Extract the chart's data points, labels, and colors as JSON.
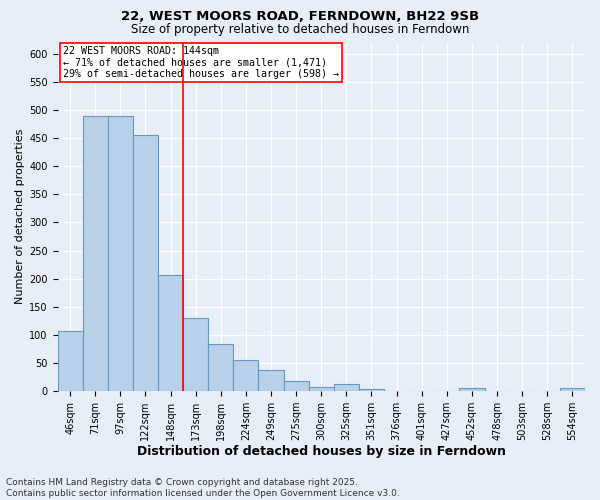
{
  "title_line1": "22, WEST MOORS ROAD, FERNDOWN, BH22 9SB",
  "title_line2": "Size of property relative to detached houses in Ferndown",
  "xlabel": "Distribution of detached houses by size in Ferndown",
  "ylabel": "Number of detached properties",
  "categories": [
    "46sqm",
    "71sqm",
    "97sqm",
    "122sqm",
    "148sqm",
    "173sqm",
    "198sqm",
    "224sqm",
    "249sqm",
    "275sqm",
    "300sqm",
    "325sqm",
    "351sqm",
    "376sqm",
    "401sqm",
    "427sqm",
    "452sqm",
    "478sqm",
    "503sqm",
    "528sqm",
    "554sqm"
  ],
  "values": [
    107,
    490,
    490,
    455,
    207,
    130,
    83,
    55,
    37,
    18,
    8,
    12,
    3,
    1,
    1,
    1,
    5,
    1,
    1,
    1,
    6
  ],
  "bar_color": "#b8d0e8",
  "bar_edge_color": "#6699bb",
  "bar_linewidth": 0.8,
  "vline_x": 4.5,
  "vline_color": "red",
  "vline_linewidth": 1.2,
  "annotation_text": "22 WEST MOORS ROAD: 144sqm\n← 71% of detached houses are smaller (1,471)\n29% of semi-detached houses are larger (598) →",
  "annotation_box_color": "white",
  "annotation_box_edge": "red",
  "annotation_fontsize": 7.2,
  "footer_line1": "Contains HM Land Registry data © Crown copyright and database right 2025.",
  "footer_line2": "Contains public sector information licensed under the Open Government Licence v3.0.",
  "background_color": "#e8eef8",
  "ylim": [
    0,
    620
  ],
  "yticks": [
    0,
    50,
    100,
    150,
    200,
    250,
    300,
    350,
    400,
    450,
    500,
    550,
    600
  ],
  "title_fontsize": 9.5,
  "subtitle_fontsize": 8.5,
  "xlabel_fontsize": 9,
  "ylabel_fontsize": 8,
  "tick_fontsize": 7,
  "footer_fontsize": 6.5
}
